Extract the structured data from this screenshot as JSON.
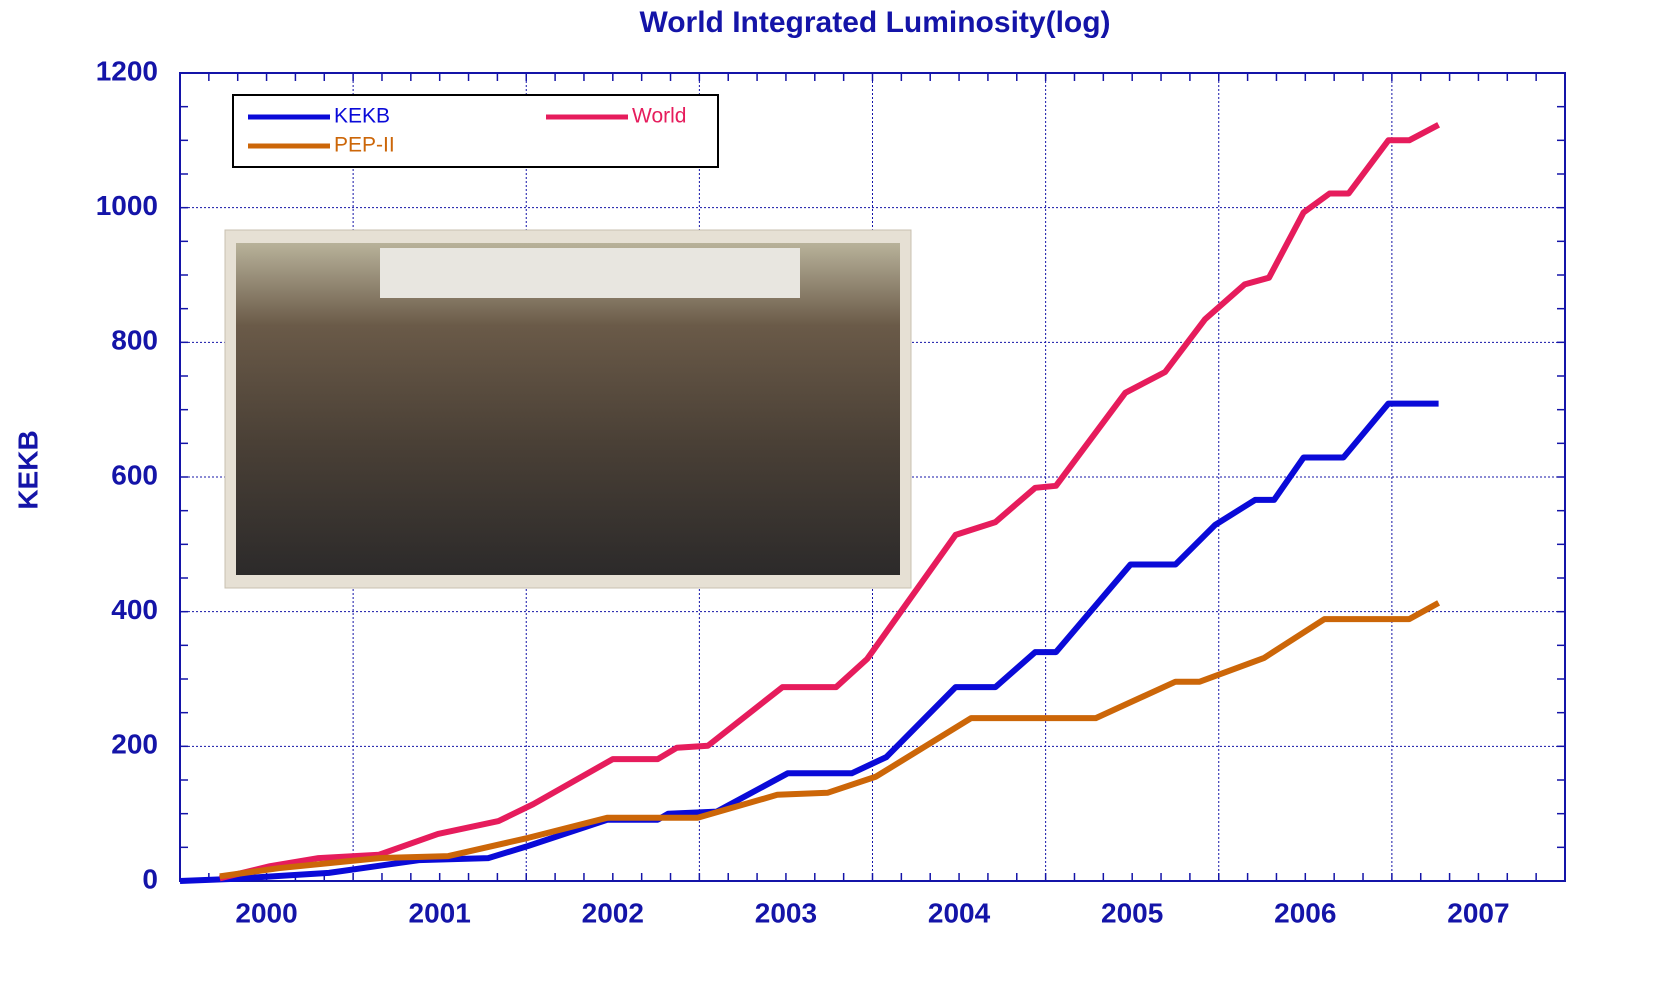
{
  "chart_data": {
    "type": "line",
    "title": "World Integrated Luminosity(log)",
    "ylabel": "KEKB",
    "xlim": [
      2000,
      2008
    ],
    "xticks": [
      2000,
      2001,
      2002,
      2003,
      2004,
      2005,
      2006,
      2007
    ],
    "ylim": [
      0,
      1200
    ],
    "yticks": [
      0,
      200,
      400,
      600,
      800,
      1000,
      1200
    ],
    "grid": true,
    "legend": "upper left",
    "series": [
      {
        "name": "KEKB",
        "color": "#0a0ad8",
        "x": [
          2000.0,
          2000.29,
          2000.86,
          2001.38,
          2001.78,
          2002.01,
          2002.47,
          2002.76,
          2002.82,
          2003.1,
          2003.51,
          2003.88,
          2004.08,
          2004.48,
          2004.71,
          2004.94,
          2005.06,
          2005.49,
          2005.75,
          2005.98,
          2006.21,
          2006.32,
          2006.49,
          2006.72,
          2006.98,
          2007.27
        ],
        "values": [
          0,
          3,
          12,
          31,
          34,
          52,
          91,
          91,
          100,
          103,
          160,
          160,
          184,
          288,
          288,
          340,
          340,
          470,
          470,
          529,
          566,
          566,
          629,
          629,
          709,
          709
        ]
      },
      {
        "name": "World",
        "color": "#e61c5c",
        "x": [
          2000.23,
          2000.52,
          2000.8,
          2001.15,
          2001.49,
          2001.84,
          2002.04,
          2002.5,
          2002.76,
          2002.87,
          2003.05,
          2003.48,
          2003.79,
          2003.97,
          2004.48,
          2004.71,
          2004.94,
          2005.06,
          2005.46,
          2005.69,
          2005.92,
          2006.15,
          2006.29,
          2006.49,
          2006.64,
          2006.75,
          2006.98,
          2007.1,
          2007.27
        ],
        "values": [
          4,
          22,
          34,
          39,
          70,
          89,
          114,
          181,
          181,
          198,
          201,
          288,
          288,
          330,
          514,
          533,
          584,
          587,
          725,
          756,
          834,
          886,
          896,
          993,
          1021,
          1021,
          1100,
          1100,
          1123
        ]
      },
      {
        "name": "PEP-II",
        "color": "#cc6608",
        "x": [
          2000.23,
          2000.57,
          2001.15,
          2001.55,
          2002.01,
          2002.47,
          2002.99,
          2003.45,
          2003.74,
          2004.02,
          2004.57,
          2005.29,
          2005.75,
          2005.89,
          2006.26,
          2006.61,
          2007.1,
          2007.27
        ],
        "values": [
          7,
          19,
          34,
          37,
          64,
          94,
          94,
          128,
          131,
          155,
          242,
          242,
          296,
          296,
          331,
          389,
          389,
          413
        ]
      }
    ]
  }
}
